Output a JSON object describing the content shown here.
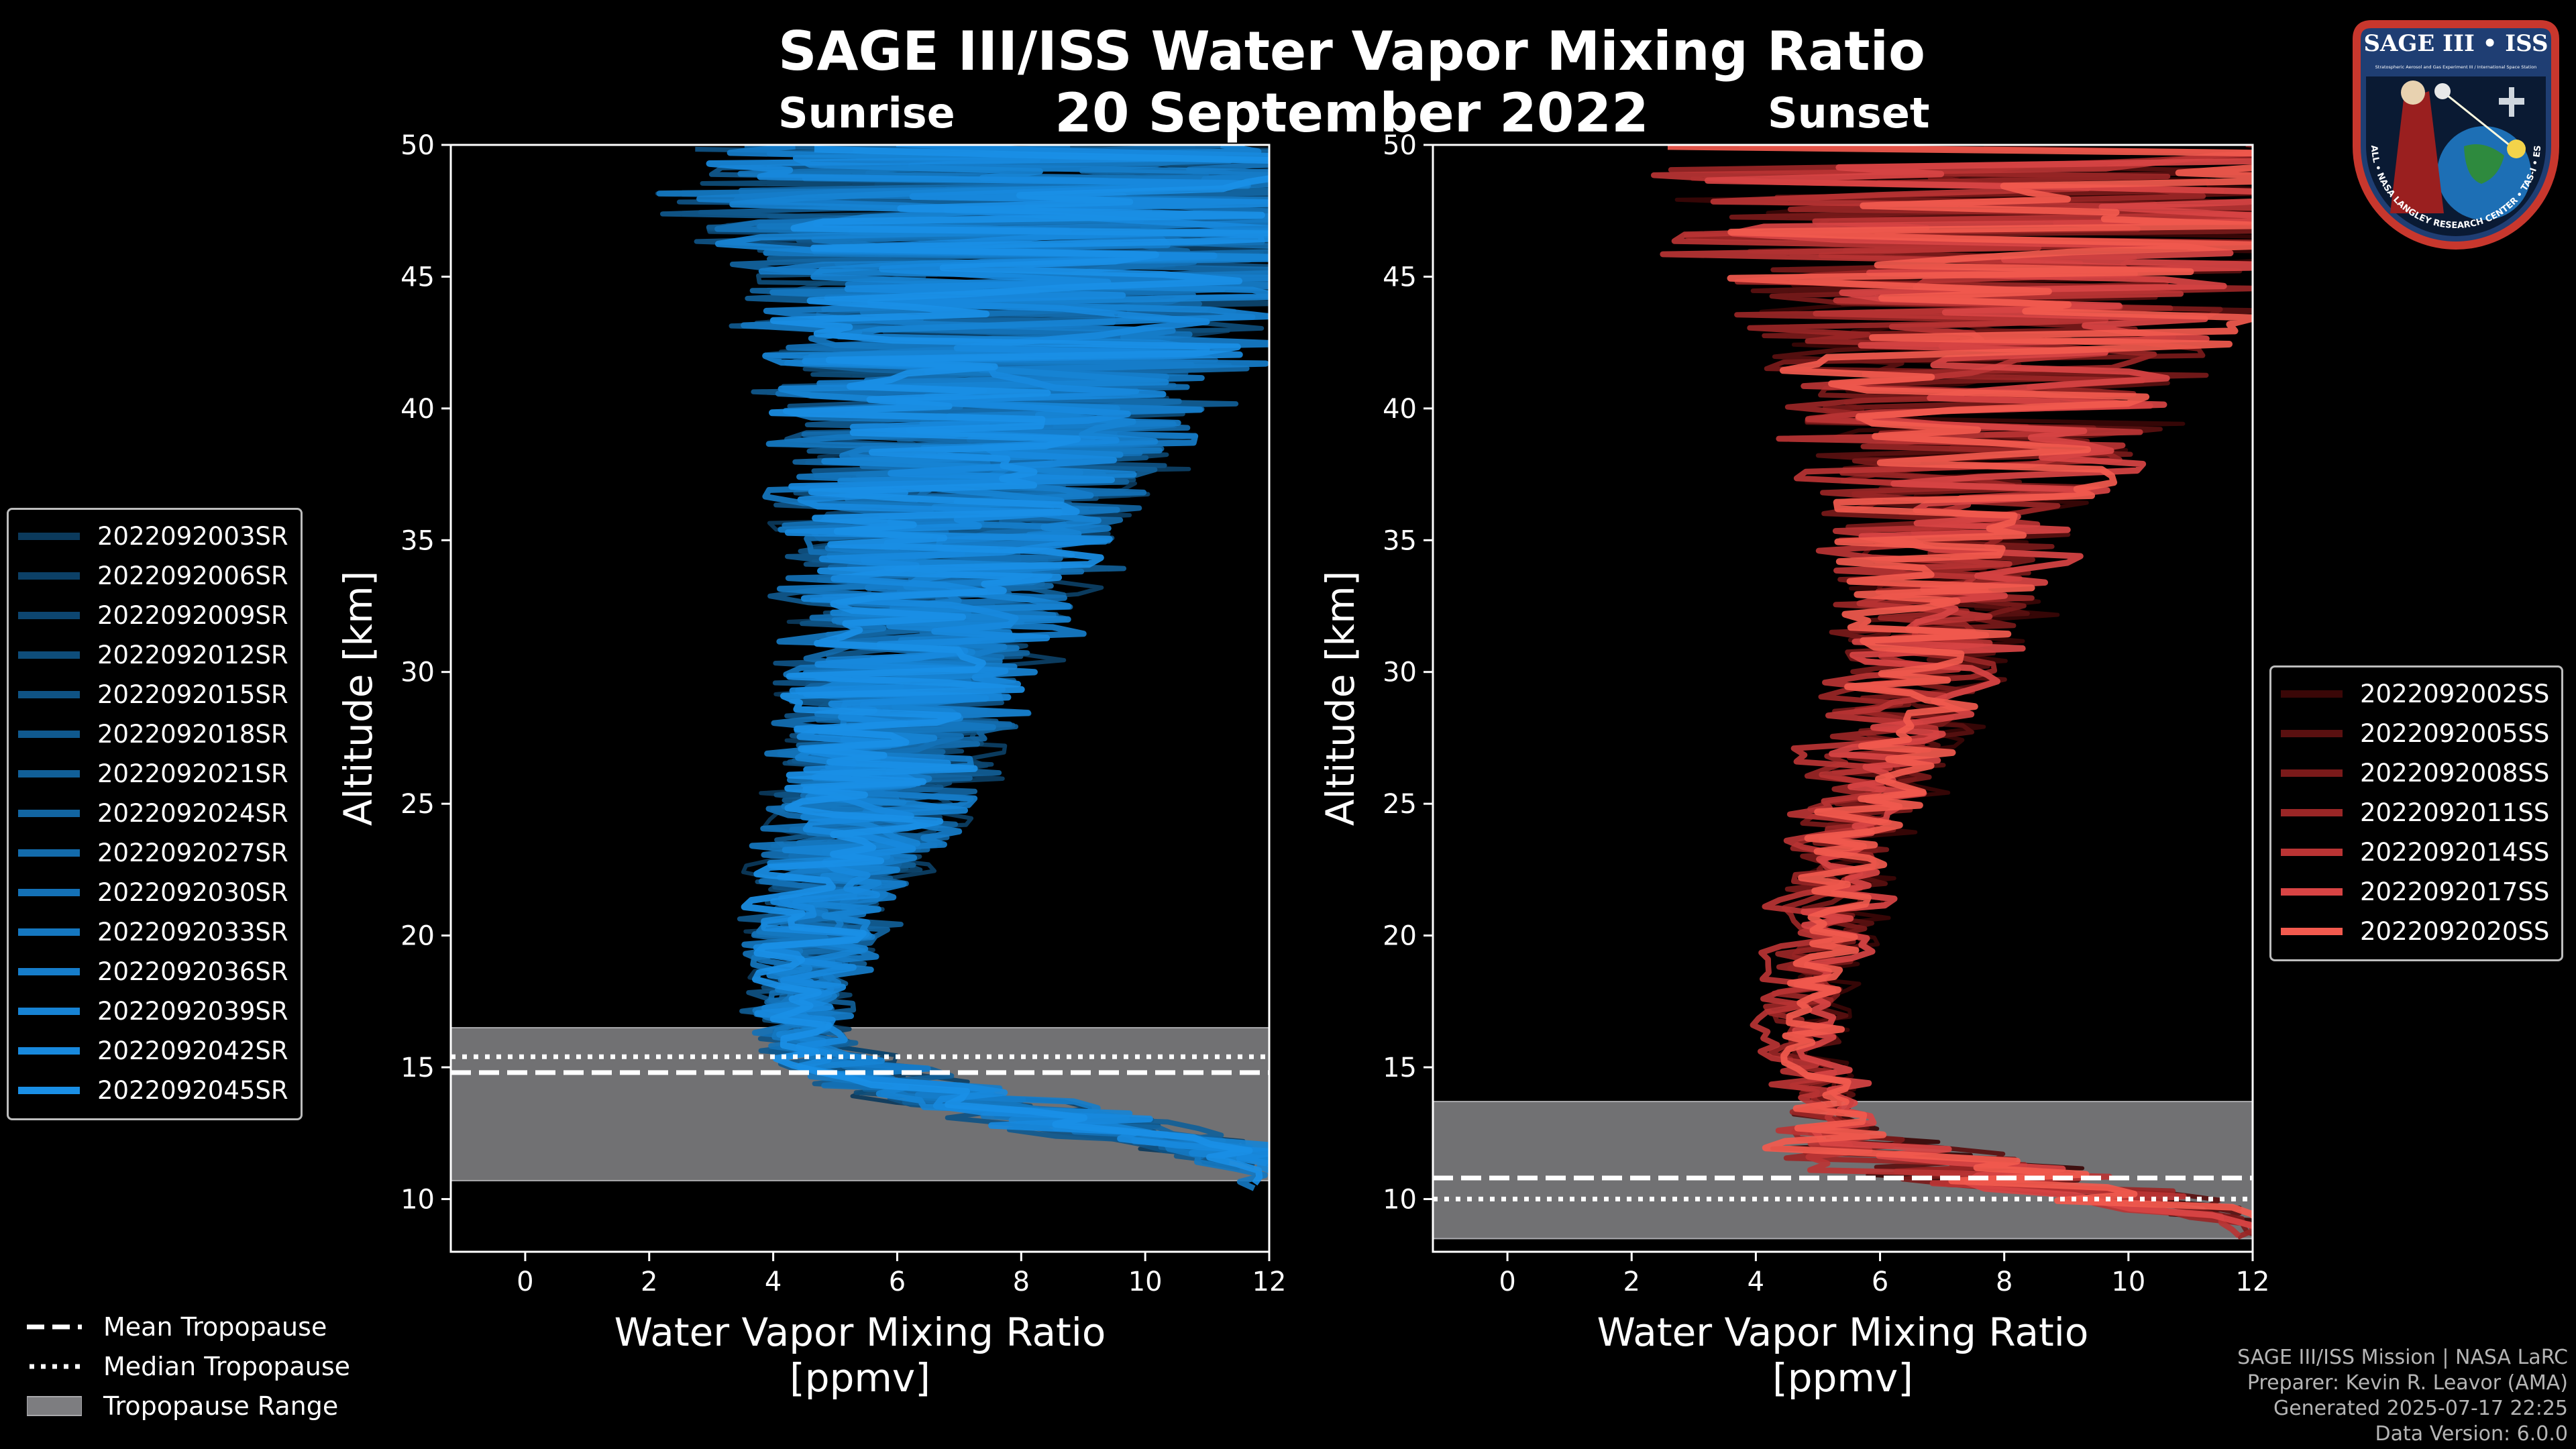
{
  "title": "SAGE III/ISS Water Vapor Mixing Ratio",
  "date": "20 September 2022",
  "panels": {
    "sunrise_label": "Sunrise",
    "sunset_label": "Sunset"
  },
  "chart_data": [
    {
      "type": "line",
      "name": "sunrise",
      "xlabel": "Water Vapor Mixing Ratio\n[ppmv]",
      "ylabel": "Altitude [km]",
      "xlim": [
        -1.2,
        12
      ],
      "ylim": [
        8,
        50
      ],
      "xticks": [
        0,
        2,
        4,
        6,
        8,
        10,
        12
      ],
      "yticks": [
        10,
        15,
        20,
        25,
        30,
        35,
        40,
        45,
        50
      ],
      "tropopause": {
        "mean": 14.8,
        "median": 15.4,
        "range": [
          10.7,
          16.5
        ]
      },
      "series_colors": [
        "#0b3a5c",
        "#0c4066",
        "#0d4670",
        "#0e4d7a",
        "#0f5384",
        "#10598e",
        "#115f98",
        "#1265a2",
        "#136bac",
        "#1471b6",
        "#1577c0",
        "#167dca",
        "#1783d4",
        "#1889dd",
        "#1a8fe6"
      ],
      "series": [
        {
          "name": "2022092003SR"
        },
        {
          "name": "2022092006SR"
        },
        {
          "name": "2022092009SR"
        },
        {
          "name": "2022092012SR"
        },
        {
          "name": "2022092015SR"
        },
        {
          "name": "2022092018SR"
        },
        {
          "name": "2022092021SR"
        },
        {
          "name": "2022092024SR"
        },
        {
          "name": "2022092027SR"
        },
        {
          "name": "2022092030SR"
        },
        {
          "name": "2022092033SR"
        },
        {
          "name": "2022092036SR"
        },
        {
          "name": "2022092039SR"
        },
        {
          "name": "2022092042SR"
        },
        {
          "name": "2022092045SR"
        }
      ],
      "profile_shape": {
        "altitudes": [
          11,
          12,
          13,
          14,
          15,
          16,
          17,
          18,
          20,
          22,
          24,
          26,
          28,
          30,
          32,
          34,
          36,
          38,
          40,
          42,
          44,
          46,
          48,
          50
        ],
        "centers": [
          12,
          11,
          8.5,
          6.5,
          5.2,
          4.5,
          4.3,
          4.4,
          4.6,
          4.9,
          5.3,
          5.7,
          6.0,
          6.2,
          6.5,
          6.8,
          7.0,
          7.3,
          7.6,
          7.8,
          8.0,
          8.2,
          8.4,
          8.5
        ],
        "spreads": [
          0.2,
          1.0,
          1.5,
          1.2,
          0.8,
          0.6,
          0.6,
          0.7,
          0.9,
          1.1,
          1.3,
          1.5,
          1.7,
          1.9,
          2.1,
          2.3,
          2.6,
          2.9,
          3.3,
          3.8,
          4.4,
          5.0,
          5.5,
          5.5
        ]
      }
    },
    {
      "type": "line",
      "name": "sunset",
      "xlabel": "Water Vapor Mixing Ratio\n[ppmv]",
      "ylabel": "Altitude [km]",
      "xlim": [
        -1.2,
        12
      ],
      "ylim": [
        8,
        50
      ],
      "xticks": [
        0,
        2,
        4,
        6,
        8,
        10,
        12
      ],
      "yticks": [
        10,
        15,
        20,
        25,
        30,
        35,
        40,
        45,
        50
      ],
      "tropopause": {
        "mean": 10.8,
        "median": 10.0,
        "range": [
          8.5,
          13.7
        ]
      },
      "series_colors": [
        "#3a0707",
        "#5a1010",
        "#7a1a1a",
        "#9a2626",
        "#ba3434",
        "#d84444",
        "#f25a4e"
      ],
      "series": [
        {
          "name": "2022092002SS"
        },
        {
          "name": "2022092005SS"
        },
        {
          "name": "2022092008SS"
        },
        {
          "name": "2022092011SS"
        },
        {
          "name": "2022092014SS"
        },
        {
          "name": "2022092017SS"
        },
        {
          "name": "2022092020SS"
        }
      ],
      "profile_shape": {
        "altitudes": [
          9,
          10,
          11,
          12,
          13,
          14,
          15,
          16,
          18,
          20,
          22,
          24,
          26,
          28,
          30,
          32,
          34,
          36,
          38,
          40,
          42,
          44,
          46,
          48,
          50
        ],
        "centers": [
          12,
          10,
          7.5,
          5.5,
          5.0,
          5.2,
          4.9,
          4.7,
          4.9,
          5.1,
          5.3,
          5.6,
          5.9,
          6.3,
          6.6,
          6.9,
          7.1,
          7.3,
          7.5,
          7.7,
          7.9,
          8.1,
          8.3,
          8.4,
          8.5
        ],
        "spreads": [
          0.2,
          1.5,
          2.2,
          1.5,
          0.7,
          0.5,
          0.5,
          0.5,
          0.5,
          0.6,
          0.7,
          0.8,
          1.0,
          1.1,
          1.3,
          1.5,
          1.7,
          2.0,
          2.4,
          2.9,
          3.5,
          4.2,
          5.0,
          5.5,
          5.5
        ]
      }
    }
  ],
  "tropopause_legend": {
    "mean": "Mean Tropopause",
    "median": "Median Tropopause",
    "range": "Tropopause Range"
  },
  "credits": {
    "line1": "SAGE III/ISS Mission | NASA LaRC",
    "line2": "Preparer: Kevin R. Leavor (AMA)",
    "line3": "Generated 2025-07-17 22:25",
    "line4": "Data Version: 6.0.0"
  },
  "logo": {
    "title": "SAGE III • ISS",
    "subtitle": "Stratospheric Aerosol and Gas Experiment III / International Space Station",
    "ring_text": "BALL • NASA LANGLEY RESEARCH CENTER • TAS-I • ESA"
  }
}
